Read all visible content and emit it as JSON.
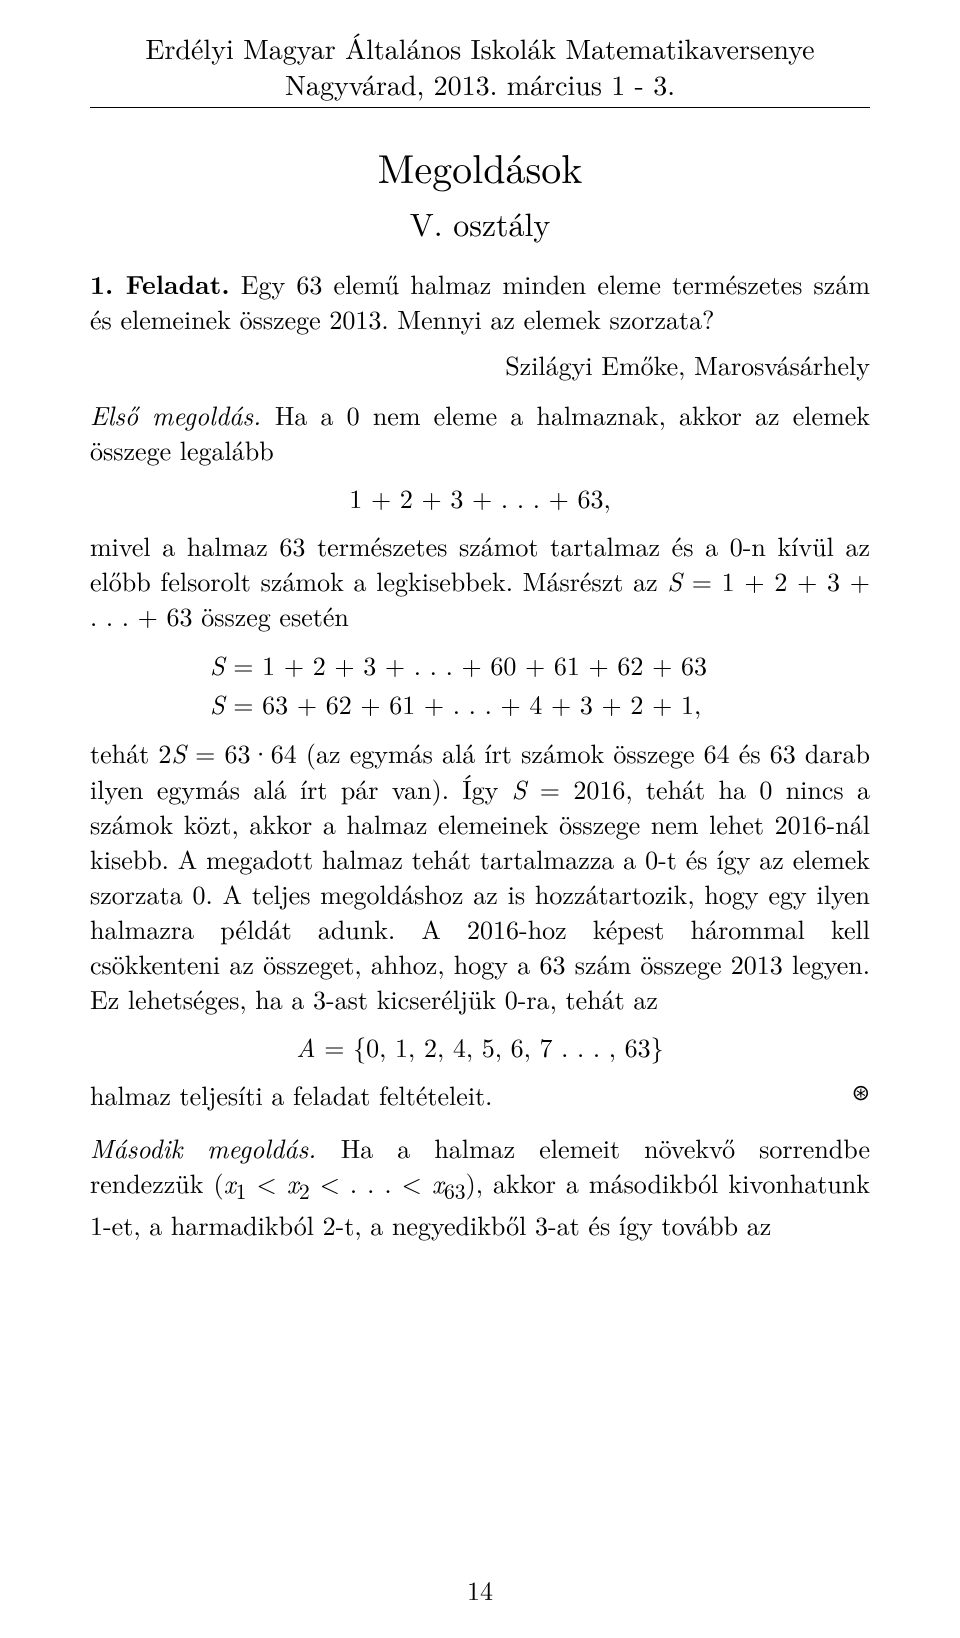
{
  "header": {
    "line1": "Erdélyi Magyar Általános Iskolák Matematikaversenye",
    "line2": "Nagyvárad, 2013. március 1 - 3."
  },
  "title": "Megoldások",
  "subtitle": "V. osztály",
  "problem": {
    "label": "1. Feladat.",
    "text": " Egy 63 elemű halmaz minden eleme természetes szám és elemeinek összege 2013. Mennyi az elemek szorzata?"
  },
  "attribution": "Szilágyi Emőke, Marosvásárhely",
  "solution1": {
    "label": "Első megoldás. ",
    "para1a": "Ha a 0 nem eleme a halmaznak, akkor az elemek összege legalább",
    "eq1": "1 + 2 + 3 + . . . + 63,",
    "para1b_a": "mivel a halmaz 63 természetes számot tartalmaz és a 0-n kívül az előbb felsorolt számok a legkisebbek. Másrészt az ",
    "para1b_b": "S",
    "para1b_c": " = 1 + 2 + 3 + . . . + 63 összeg esetén",
    "eq2_line1_a": "S",
    "eq2_line1_b": " =  1  +  2  +  3  + . . . + 60 + 61 + 62 + 63",
    "eq2_line2_a": "S",
    "eq2_line2_b": " = 63 + 62 + 61 + . . . +  4  +  3  +  2  +  1,",
    "para2_a": "tehát 2",
    "para2_b": "S",
    "para2_c": " = 63·64 (az egymás alá írt számok összege 64 és 63 darab ilyen egymás alá írt pár van). Így ",
    "para2_d": "S",
    "para2_e": " = 2016, tehát ha 0 nincs a számok közt, akkor a halmaz elemeinek összege nem lehet 2016-nál kisebb. A megadott halmaz tehát tartalmazza a 0-t és így az elemek szorzata 0. A teljes megoldáshoz az is hozzátartozik, hogy egy ilyen halmazra példát adunk. A 2016-hoz képest hárommal kell csökkenteni az összeget, ahhoz, hogy a 63 szám összege 2013 legyen. Ez lehetséges, ha a 3-ast kicseréljük 0-ra, tehát az",
    "eq3_a": "A",
    "eq3_b": " = {0, 1, 2, 4, 5, 6, 7 . . . , 63}",
    "closing": "halmaz teljesíti a feladat feltételeit.",
    "qed": "⊛"
  },
  "solution2": {
    "label": "Második megoldás. ",
    "para_a": "Ha a halmaz elemeit növekvő sorrendbe rendezzük (",
    "para_b": "x",
    "para_c": "1",
    "para_d": " < ",
    "para_e": "x",
    "para_f": "2",
    "para_g": " < . . . < ",
    "para_h": "x",
    "para_i": "63",
    "para_j": "), akkor a másodikból kivonhatunk 1-et, a harmadikból 2-t, a negyedikből 3-at és így tovább az"
  },
  "page_number": "14"
}
